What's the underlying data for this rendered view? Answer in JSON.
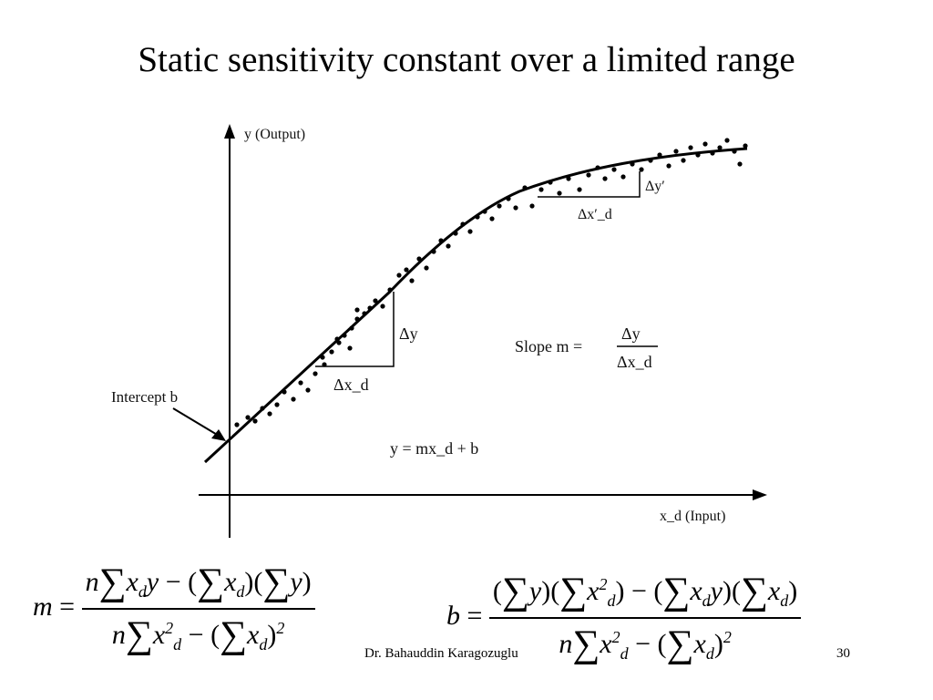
{
  "slide": {
    "title": "Static sensitivity constant over a limited range",
    "author": "Dr. Bahauddin Karagozuglu",
    "page_number": "30"
  },
  "figure": {
    "y_axis_label": "y (Output)",
    "x_axis_label": "x_d (Input)",
    "intercept_label": "Intercept b",
    "delta_y_label": "Δy",
    "delta_x_label": "Δx_d",
    "delta_y_prime_label": "Δy′",
    "delta_x_prime_label": "Δx′_d",
    "slope_label": "Slope m =",
    "slope_num": "Δy",
    "slope_den": "Δx_d",
    "line_equation": "y = mx_d + b"
  },
  "equations": {
    "m_lhs": "m =",
    "b_lhs": "b ="
  }
}
